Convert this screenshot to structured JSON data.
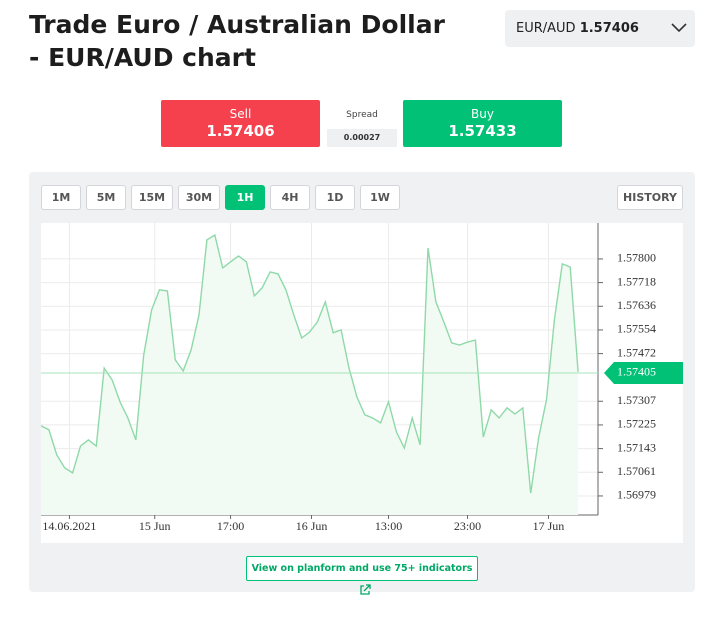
{
  "header": {
    "title": "Trade Euro / Australian Dollar - EUR/AUD chart"
  },
  "selector": {
    "pair": "EUR/AUD",
    "price": "1.57406"
  },
  "sell": {
    "label": "Sell",
    "price": "1.57406"
  },
  "spread": {
    "label": "Spread",
    "value": "0.00027"
  },
  "buy": {
    "label": "Buy",
    "price": "1.57433"
  },
  "timeframes": [
    "1M",
    "5M",
    "15M",
    "30M",
    "1H",
    "4H",
    "1D",
    "1W"
  ],
  "active_timeframe": "1H",
  "history": "HISTORY",
  "link": "View on planform and use 75+ indicators",
  "chart_data": {
    "type": "line",
    "color": "#8fd9a8",
    "values": [
      1.57222,
      1.57208,
      1.57121,
      1.57076,
      1.57059,
      1.57152,
      1.57173,
      1.57152,
      1.57422,
      1.57381,
      1.57305,
      1.57249,
      1.57173,
      1.57467,
      1.57623,
      1.57693,
      1.57689,
      1.5745,
      1.57412,
      1.57485,
      1.57606,
      1.57866,
      1.57883,
      1.57769,
      1.5779,
      1.5781,
      1.5779,
      1.57672,
      1.577,
      1.57755,
      1.57748,
      1.57693,
      1.57606,
      1.57526,
      1.57547,
      1.57582,
      1.57651,
      1.57544,
      1.57554,
      1.57422,
      1.57322,
      1.5726,
      1.57249,
      1.57232,
      1.57305,
      1.57201,
      1.57145,
      1.57249,
      1.57156,
      1.57838,
      1.57651,
      1.57582,
      1.57509,
      1.57502,
      1.57512,
      1.57519,
      1.57183,
      1.57277,
      1.57249,
      1.57284,
      1.57263,
      1.57284,
      1.56989,
      1.5718,
      1.57312,
      1.57589,
      1.57783,
      1.57772,
      1.57409
    ],
    "current_price": 1.57405,
    "xlim": [
      0,
      69
    ],
    "xticks": [
      {
        "value": 3.6,
        "label": "14.06.2021"
      },
      {
        "value": 14.4,
        "label": "15 Jun"
      },
      {
        "value": 24,
        "label": "17:00"
      },
      {
        "value": 34.25,
        "label": "16 Jun"
      },
      {
        "value": 44,
        "label": "13:00"
      },
      {
        "value": 54,
        "label": "23:00"
      },
      {
        "value": 64.25,
        "label": "17 Jun"
      }
    ],
    "ylim": [
      1.56913,
      1.57921
    ],
    "yticks": [
      1.56979,
      1.57061,
      1.57143,
      1.57225,
      1.57307,
      1.57472,
      1.57554,
      1.57636,
      1.57718,
      {
        "value": 1.578,
        "label": "1.57800"
      }
    ],
    "grid": true
  }
}
